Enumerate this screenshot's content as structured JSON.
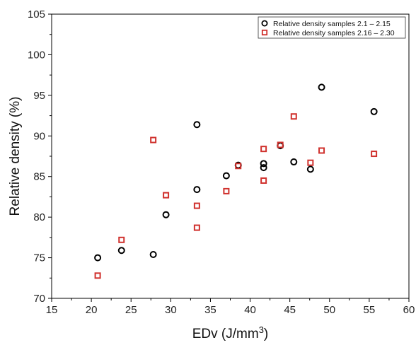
{
  "chart_data": {
    "type": "scatter",
    "title": "",
    "xlabel": "EDv (J/mm",
    "xlabel_sup": "3",
    "xlabel_end": ")",
    "ylabel": "Relative density (%)",
    "xlim": [
      15,
      60
    ],
    "ylim": [
      70,
      105
    ],
    "xticks": [
      "15",
      "20",
      "25",
      "30",
      "35",
      "40",
      "45",
      "50",
      "55",
      "60"
    ],
    "yticks": [
      "70",
      "75",
      "80",
      "85",
      "90",
      "95",
      "100",
      "105"
    ],
    "legend_position": "top-right",
    "grid": false,
    "series": [
      {
        "name": "Relative density samples 2.1 – 2.15",
        "marker": "circle",
        "color": "#000000",
        "points": [
          [
            20.8,
            75.0
          ],
          [
            23.8,
            75.9
          ],
          [
            27.8,
            75.4
          ],
          [
            29.4,
            80.3
          ],
          [
            33.3,
            91.4
          ],
          [
            33.3,
            83.4
          ],
          [
            37.0,
            85.1
          ],
          [
            38.5,
            86.4
          ],
          [
            41.7,
            86.6
          ],
          [
            41.7,
            86.1
          ],
          [
            43.8,
            88.8
          ],
          [
            45.5,
            86.8
          ],
          [
            47.6,
            85.9
          ],
          [
            49.0,
            96.0
          ],
          [
            55.6,
            93.0
          ]
        ]
      },
      {
        "name": "Relative density samples 2.16 – 2.30",
        "marker": "square",
        "color": "#d0312d",
        "points": [
          [
            20.8,
            72.8
          ],
          [
            23.8,
            77.2
          ],
          [
            27.8,
            89.5
          ],
          [
            29.4,
            82.7
          ],
          [
            33.3,
            81.4
          ],
          [
            33.3,
            78.7
          ],
          [
            37.0,
            83.2
          ],
          [
            38.5,
            86.3
          ],
          [
            41.7,
            88.4
          ],
          [
            41.7,
            84.5
          ],
          [
            43.8,
            88.9
          ],
          [
            45.5,
            92.4
          ],
          [
            47.6,
            86.7
          ],
          [
            49.0,
            88.2
          ],
          [
            55.6,
            87.8
          ]
        ]
      }
    ]
  }
}
